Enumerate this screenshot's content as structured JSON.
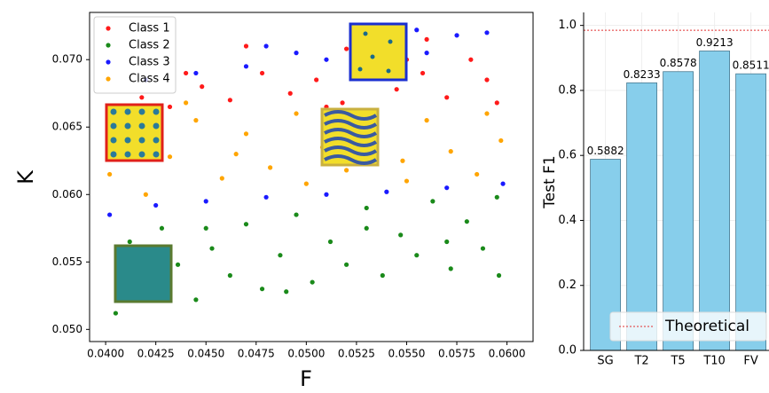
{
  "chart_data": [
    {
      "type": "scatter",
      "xlabel": "F",
      "ylabel": "K",
      "xlim": [
        0.0392,
        0.0613
      ],
      "ylim": [
        0.0491,
        0.0735
      ],
      "xticks": [
        {
          "value": 0.04,
          "label": "0.0400"
        },
        {
          "value": 0.0425,
          "label": "0.0425"
        },
        {
          "value": 0.045,
          "label": "0.0450"
        },
        {
          "value": 0.0475,
          "label": "0.0475"
        },
        {
          "value": 0.05,
          "label": "0.0500"
        },
        {
          "value": 0.0525,
          "label": "0.0525"
        },
        {
          "value": 0.055,
          "label": "0.0550"
        },
        {
          "value": 0.0575,
          "label": "0.0575"
        },
        {
          "value": 0.06,
          "label": "0.0600"
        }
      ],
      "yticks": [
        {
          "value": 0.05,
          "label": "0.050"
        },
        {
          "value": 0.055,
          "label": "0.055"
        },
        {
          "value": 0.06,
          "label": "0.060"
        },
        {
          "value": 0.065,
          "label": "0.065"
        },
        {
          "value": 0.07,
          "label": "0.070"
        }
      ],
      "legend": "upper left",
      "series": [
        {
          "name": "Class 1",
          "color": "#ff1a1a",
          "x": [
            0.0405,
            0.0418,
            0.0432,
            0.0448,
            0.0462,
            0.0478,
            0.0492,
            0.0505,
            0.0518,
            0.0532,
            0.0545,
            0.0558,
            0.057,
            0.0582,
            0.0595,
            0.047,
            0.052,
            0.056,
            0.059,
            0.044,
            0.051,
            0.055
          ],
          "y": [
            0.066,
            0.0672,
            0.0665,
            0.068,
            0.067,
            0.069,
            0.0675,
            0.0685,
            0.0668,
            0.0695,
            0.0678,
            0.069,
            0.0672,
            0.07,
            0.0668,
            0.071,
            0.0708,
            0.0715,
            0.0685,
            0.069,
            0.0665,
            0.07
          ]
        },
        {
          "name": "Class 2",
          "color": "#1a8a1a",
          "x": [
            0.0405,
            0.0412,
            0.042,
            0.0428,
            0.0436,
            0.0445,
            0.0453,
            0.0462,
            0.047,
            0.0478,
            0.0487,
            0.0495,
            0.0503,
            0.0512,
            0.052,
            0.053,
            0.0538,
            0.0547,
            0.0555,
            0.0563,
            0.0572,
            0.058,
            0.0588,
            0.0596,
            0.041,
            0.045,
            0.049,
            0.053,
            0.057,
            0.0595
          ],
          "y": [
            0.0512,
            0.0565,
            0.053,
            0.0575,
            0.0548,
            0.0522,
            0.056,
            0.054,
            0.0578,
            0.053,
            0.0555,
            0.0585,
            0.0535,
            0.0565,
            0.0548,
            0.059,
            0.054,
            0.057,
            0.0555,
            0.0595,
            0.0545,
            0.058,
            0.056,
            0.054,
            0.0545,
            0.0575,
            0.0528,
            0.0575,
            0.0565,
            0.0598
          ]
        },
        {
          "name": "Class 3",
          "color": "#1a1aff",
          "x": [
            0.0402,
            0.0425,
            0.045,
            0.048,
            0.051,
            0.054,
            0.057,
            0.0598,
            0.042,
            0.0445,
            0.047,
            0.0495,
            0.051,
            0.0525,
            0.0545,
            0.056,
            0.0575,
            0.059,
            0.048,
            0.0555
          ],
          "y": [
            0.0585,
            0.0592,
            0.0595,
            0.0598,
            0.06,
            0.0602,
            0.0605,
            0.0608,
            0.0685,
            0.069,
            0.0695,
            0.0705,
            0.07,
            0.0712,
            0.0715,
            0.0705,
            0.0718,
            0.072,
            0.071,
            0.0722
          ]
        },
        {
          "name": "Class 4",
          "color": "#ffa500",
          "x": [
            0.0402,
            0.041,
            0.042,
            0.0432,
            0.0445,
            0.0458,
            0.047,
            0.0482,
            0.0495,
            0.0508,
            0.052,
            0.0535,
            0.0548,
            0.056,
            0.0572,
            0.0585,
            0.0597,
            0.044,
            0.05,
            0.055,
            0.059,
            0.0465
          ],
          "y": [
            0.0615,
            0.064,
            0.06,
            0.0628,
            0.0655,
            0.0612,
            0.0645,
            0.062,
            0.066,
            0.0635,
            0.0618,
            0.065,
            0.0625,
            0.0655,
            0.0632,
            0.0615,
            0.064,
            0.0668,
            0.0608,
            0.061,
            0.066,
            0.063
          ]
        }
      ]
    },
    {
      "type": "bar",
      "ylabel": "Test F1",
      "categories": [
        "SG",
        "T2",
        "T5",
        "T10",
        "FV"
      ],
      "values": [
        0.5882,
        0.8233,
        0.8578,
        0.9213,
        0.8511
      ],
      "color": "#87ceeb",
      "ylim": [
        0,
        1.04
      ],
      "yticks": [
        {
          "value": 0,
          "label": "0.0"
        },
        0.2,
        0.4,
        0.6,
        0.8,
        {
          "value": 1,
          "label": "1.0"
        }
      ],
      "grid": true,
      "legend": "lower right",
      "reference_line": {
        "name": "Theoretical",
        "value": 0.985,
        "color": "#e03030"
      }
    }
  ]
}
